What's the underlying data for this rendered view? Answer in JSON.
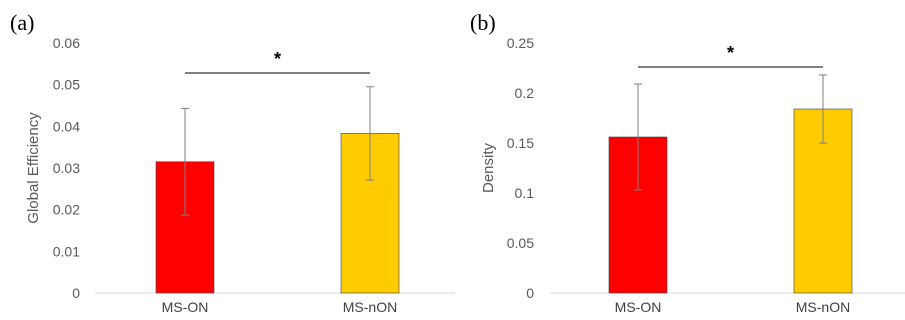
{
  "chart_data": [
    {
      "panel_label": "(a)",
      "type": "bar",
      "categories": [
        "MS-ON",
        "MS-nON"
      ],
      "values": [
        0.0315,
        0.0383
      ],
      "error": [
        0.0128,
        0.0112
      ],
      "colors": [
        "#ff0000",
        "#ffcc00"
      ],
      "ylabel": "Global Efficiency",
      "ylim": [
        0,
        0.06
      ],
      "yticks": [
        "0",
        "0.01",
        "0.02",
        "0.03",
        "0.04",
        "0.05",
        "0.06"
      ],
      "significance": "*",
      "grid": false
    },
    {
      "panel_label": "(b)",
      "type": "bar",
      "categories": [
        "MS-ON",
        "MS-nON"
      ],
      "values": [
        0.156,
        0.184
      ],
      "error": [
        0.053,
        0.034
      ],
      "colors": [
        "#ff0000",
        "#ffcc00"
      ],
      "ylabel": "Density",
      "ylim": [
        0,
        0.25
      ],
      "yticks": [
        "0",
        "0.05",
        "0.1",
        "0.15",
        "0.2",
        "0.25"
      ],
      "significance": "*",
      "grid": false
    }
  ]
}
